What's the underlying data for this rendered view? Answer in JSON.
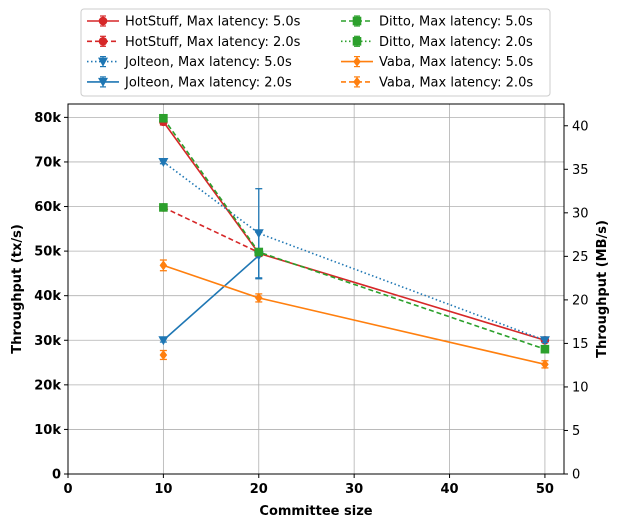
{
  "chart_data": {
    "type": "line",
    "xlabel": "Committee size",
    "ylabel": "Throughput (tx/s)",
    "ylabel_right": "Throughput (MB/s)",
    "xlim": [
      0,
      52
    ],
    "ylim": [
      0,
      83000
    ],
    "ylim_right": [
      0,
      42.5
    ],
    "x_ticks": [
      0,
      10,
      20,
      30,
      40,
      50
    ],
    "x_tick_labels": [
      "0",
      "10",
      "20",
      "30",
      "40",
      "50"
    ],
    "y_ticks": [
      0,
      10000,
      20000,
      30000,
      40000,
      50000,
      60000,
      70000,
      80000
    ],
    "y_tick_labels": [
      "0",
      "10k",
      "20k",
      "30k",
      "40k",
      "50k",
      "60k",
      "70k",
      "80k"
    ],
    "y_right_ticks": [
      0,
      5,
      10,
      15,
      20,
      25,
      30,
      35,
      40
    ],
    "y_right_tick_labels": [
      "0",
      "5",
      "10",
      "15",
      "20",
      "25",
      "30",
      "35",
      "40"
    ],
    "grid": true,
    "legend_position": "top, above plot, two columns",
    "series": [
      {
        "name": "HotStuff, Max latency: 5.0s",
        "color": "#d62728",
        "linestyle": "solid",
        "marker": "circle",
        "x": [
          10,
          20,
          50
        ],
        "y": [
          79000,
          49500,
          30000
        ],
        "yerr": [
          700,
          700,
          500
        ]
      },
      {
        "name": "HotStuff, Max latency: 2.0s",
        "color": "#d62728",
        "linestyle": "dashed",
        "marker": "circle",
        "x": [
          10,
          20
        ],
        "y": [
          59800,
          49700
        ],
        "yerr": [
          600,
          600
        ]
      },
      {
        "name": "Jolteon, Max latency: 5.0s",
        "color": "#1f77b4",
        "linestyle": "dotted",
        "marker": "triangle-down",
        "x": [
          10,
          20,
          50
        ],
        "y": [
          70000,
          54000,
          30000
        ],
        "yerr": [
          400,
          10000,
          500
        ]
      },
      {
        "name": "Jolteon, Max latency: 2.0s",
        "color": "#1f77b4",
        "linestyle": "solid",
        "marker": "triangle-down",
        "x": [
          10,
          20
        ],
        "y": [
          30000,
          49000
        ],
        "yerr": [
          400,
          5200
        ]
      },
      {
        "name": "Ditto, Max latency: 5.0s",
        "color": "#2ca02c",
        "linestyle": "dashed",
        "marker": "square",
        "x": [
          10,
          20,
          50
        ],
        "y": [
          79800,
          49800,
          28000
        ],
        "yerr": [
          500,
          600,
          600
        ]
      },
      {
        "name": "Ditto, Max latency: 2.0s",
        "color": "#2ca02c",
        "linestyle": "dotted",
        "marker": "square",
        "x": [
          10
        ],
        "y": [
          59800
        ],
        "yerr": [
          400
        ]
      },
      {
        "name": "Vaba, Max latency: 5.0s",
        "color": "#ff7f0e",
        "linestyle": "solid",
        "marker": "diamond",
        "x": [
          10,
          20,
          50
        ],
        "y": [
          46800,
          39500,
          24600
        ],
        "yerr": [
          1200,
          900,
          800
        ]
      },
      {
        "name": "Vaba, Max latency: 2.0s",
        "color": "#ff7f0e",
        "linestyle": "dashed",
        "marker": "diamond",
        "x": [
          10
        ],
        "y": [
          26700
        ],
        "yerr": [
          1000
        ]
      }
    ]
  }
}
